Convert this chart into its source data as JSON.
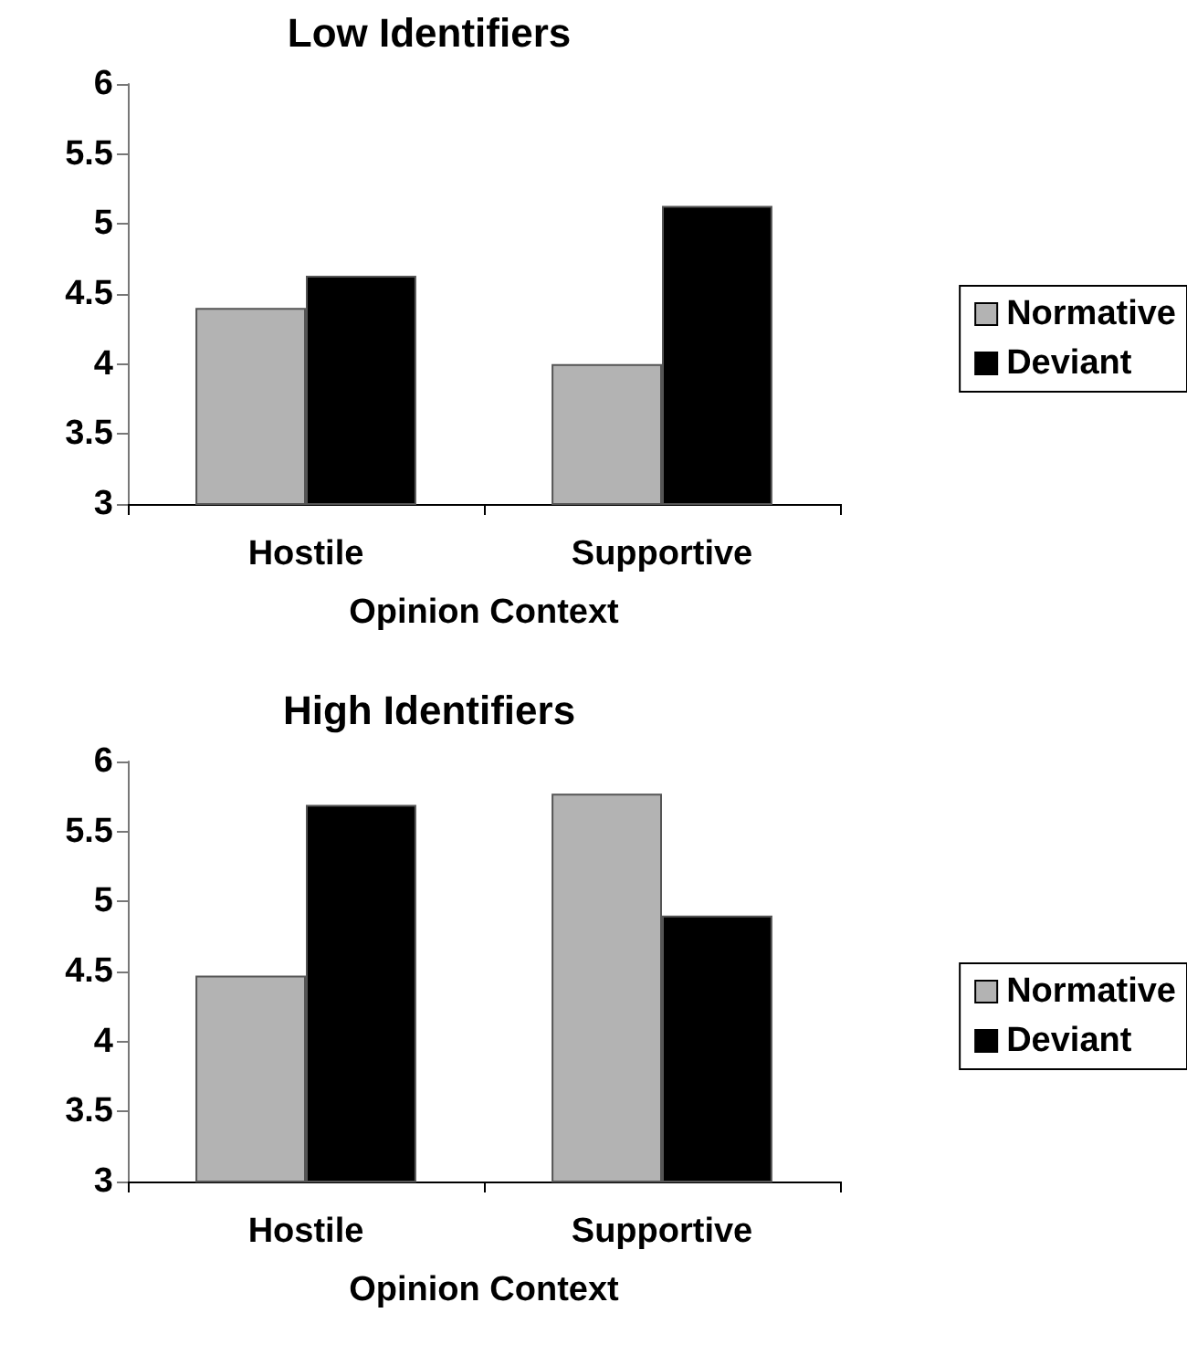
{
  "chart_data": [
    {
      "type": "bar",
      "title": "Low Identifiers",
      "xlabel": "Opinion Context",
      "categories": [
        "Hostile",
        "Supportive"
      ],
      "series": [
        {
          "name": "Normative",
          "color": "#b3b3b3",
          "values": [
            4.4,
            4.0
          ]
        },
        {
          "name": "Deviant",
          "color": "#000000",
          "values": [
            4.63,
            5.13
          ]
        }
      ],
      "ylim": [
        3,
        6
      ],
      "yticks": [
        3,
        3.5,
        4,
        4.5,
        5,
        5.5,
        6
      ],
      "grid": false,
      "legend": "right"
    },
    {
      "type": "bar",
      "title": "High Identifiers",
      "xlabel": "Opinion Context",
      "categories": [
        "Hostile",
        "Supportive"
      ],
      "series": [
        {
          "name": "Normative",
          "color": "#b3b3b3",
          "values": [
            4.47,
            5.77
          ]
        },
        {
          "name": "Deviant",
          "color": "#000000",
          "values": [
            5.69,
            4.9
          ]
        }
      ],
      "ylim": [
        3,
        6
      ],
      "yticks": [
        3,
        3.5,
        4,
        4.5,
        5,
        5.5,
        6
      ],
      "grid": false,
      "legend": "right"
    }
  ]
}
